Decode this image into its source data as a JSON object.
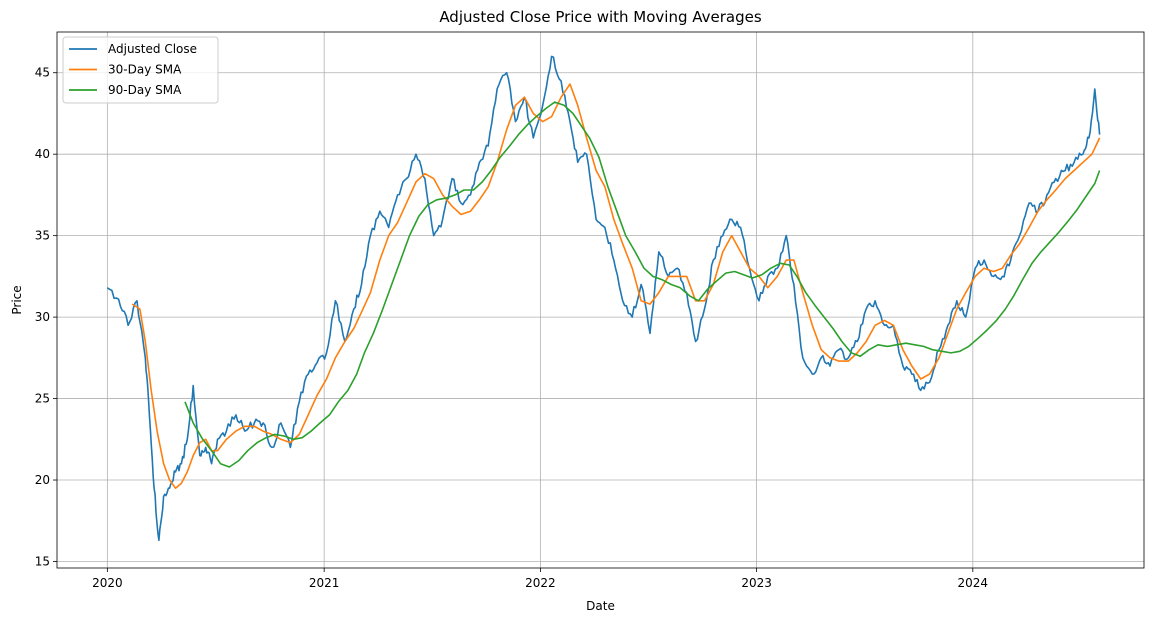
{
  "chart_data": {
    "type": "line",
    "title": "Adjusted Close Price with Moving Averages",
    "xlabel": "Date",
    "ylabel": "Price",
    "xlim": [
      "2019-10-08",
      "2024-10-16"
    ],
    "ylim": [
      14.6,
      47.5
    ],
    "x_ticks": [
      "2020",
      "2021",
      "2022",
      "2023",
      "2024"
    ],
    "y_ticks": [
      "15",
      "20",
      "25",
      "30",
      "35",
      "40",
      "45"
    ],
    "grid": true,
    "legend_position": "top-left",
    "series": [
      {
        "name": "Adjusted Close",
        "color": "#1f77b4",
        "x": [
          "2020-01-01",
          "2020-01-20",
          "2020-02-05",
          "2020-02-20",
          "2020-03-05",
          "2020-03-12",
          "2020-03-20",
          "2020-03-28",
          "2020-04-05",
          "2020-04-15",
          "2020-04-25",
          "2020-05-05",
          "2020-05-15",
          "2020-05-25",
          "2020-06-05",
          "2020-06-15",
          "2020-06-25",
          "2020-07-05",
          "2020-07-20",
          "2020-08-05",
          "2020-08-20",
          "2020-09-05",
          "2020-09-20",
          "2020-10-05",
          "2020-10-20",
          "2020-11-05",
          "2020-11-20",
          "2020-12-05",
          "2020-12-20",
          "2021-01-05",
          "2021-01-20",
          "2021-02-05",
          "2021-02-20",
          "2021-03-05",
          "2021-03-20",
          "2021-04-05",
          "2021-04-20",
          "2021-05-05",
          "2021-05-20",
          "2021-06-05",
          "2021-06-20",
          "2021-07-05",
          "2021-07-20",
          "2021-08-05",
          "2021-08-20",
          "2021-09-05",
          "2021-09-20",
          "2021-10-05",
          "2021-10-20",
          "2021-11-05",
          "2021-11-20",
          "2021-12-05",
          "2021-12-20",
          "2022-01-05",
          "2022-01-20",
          "2022-02-05",
          "2022-02-20",
          "2022-03-05",
          "2022-03-20",
          "2022-04-05",
          "2022-04-20",
          "2022-05-05",
          "2022-05-20",
          "2022-06-05",
          "2022-06-20",
          "2022-07-05",
          "2022-07-20",
          "2022-08-05",
          "2022-08-20",
          "2022-09-05",
          "2022-09-20",
          "2022-10-05",
          "2022-10-20",
          "2022-11-05",
          "2022-11-20",
          "2022-12-05",
          "2022-12-20",
          "2023-01-05",
          "2023-01-20",
          "2023-02-05",
          "2023-02-20",
          "2023-03-05",
          "2023-03-20",
          "2023-04-05",
          "2023-04-20",
          "2023-05-05",
          "2023-05-20",
          "2023-06-05",
          "2023-06-20",
          "2023-07-05",
          "2023-07-20",
          "2023-08-05",
          "2023-08-20",
          "2023-09-05",
          "2023-09-20",
          "2023-10-05",
          "2023-10-20",
          "2023-11-05",
          "2023-11-20",
          "2023-12-05",
          "2023-12-20",
          "2024-01-05",
          "2024-01-20",
          "2024-02-05",
          "2024-02-20",
          "2024-03-05",
          "2024-03-20",
          "2024-04-05",
          "2024-04-20",
          "2024-05-05",
          "2024-05-20",
          "2024-06-05",
          "2024-06-20",
          "2024-07-05",
          "2024-07-15",
          "2024-07-25",
          "2024-08-02"
        ],
        "values": [
          31.8,
          31.1,
          29.5,
          31.0,
          27.5,
          24.0,
          19.5,
          16.3,
          19.0,
          19.5,
          20.5,
          21.0,
          22.5,
          25.8,
          21.5,
          22.0,
          21.0,
          22.5,
          23.0,
          24.0,
          23.0,
          23.5,
          23.5,
          22.0,
          23.5,
          22.0,
          24.8,
          26.5,
          27.2,
          27.8,
          31.0,
          28.5,
          30.5,
          32.0,
          35.0,
          36.5,
          35.5,
          37.5,
          38.5,
          40.0,
          38.5,
          35.0,
          36.0,
          38.5,
          37.0,
          37.5,
          39.5,
          40.5,
          44.0,
          45.0,
          42.0,
          43.5,
          41.0,
          43.0,
          46.0,
          44.5,
          42.0,
          39.5,
          40.0,
          36.0,
          35.5,
          33.5,
          31.0,
          30.0,
          32.0,
          29.0,
          34.0,
          32.5,
          33.0,
          31.5,
          28.5,
          30.5,
          33.5,
          35.0,
          36.0,
          35.5,
          33.0,
          31.0,
          32.5,
          33.0,
          35.0,
          32.0,
          27.5,
          26.5,
          27.5,
          27.0,
          28.0,
          27.5,
          28.5,
          30.5,
          31.0,
          29.5,
          29.5,
          27.0,
          26.5,
          25.5,
          26.0,
          28.0,
          29.5,
          31.0,
          30.0,
          33.0,
          33.5,
          32.5,
          32.5,
          33.5,
          35.0,
          37.0,
          36.5,
          37.5,
          38.5,
          39.0,
          39.5,
          40.0,
          41.0,
          44.0,
          41.2
        ]
      },
      {
        "name": "30-Day SMA",
        "color": "#ff7f0e",
        "x": [
          "2020-02-12",
          "2020-02-25",
          "2020-03-05",
          "2020-03-15",
          "2020-03-25",
          "2020-04-05",
          "2020-04-15",
          "2020-04-25",
          "2020-05-05",
          "2020-05-15",
          "2020-05-25",
          "2020-06-05",
          "2020-06-15",
          "2020-06-25",
          "2020-07-05",
          "2020-07-20",
          "2020-08-05",
          "2020-08-20",
          "2020-09-05",
          "2020-09-20",
          "2020-10-05",
          "2020-10-20",
          "2020-11-05",
          "2020-11-20",
          "2020-12-05",
          "2020-12-20",
          "2021-01-05",
          "2021-01-20",
          "2021-02-05",
          "2021-02-20",
          "2021-03-05",
          "2021-03-20",
          "2021-04-05",
          "2021-04-20",
          "2021-05-05",
          "2021-05-20",
          "2021-06-05",
          "2021-06-20",
          "2021-07-05",
          "2021-07-20",
          "2021-08-05",
          "2021-08-20",
          "2021-09-05",
          "2021-09-20",
          "2021-10-05",
          "2021-10-20",
          "2021-11-05",
          "2021-11-20",
          "2021-12-05",
          "2021-12-20",
          "2022-01-05",
          "2022-01-20",
          "2022-02-05",
          "2022-02-20",
          "2022-03-05",
          "2022-03-20",
          "2022-04-05",
          "2022-04-20",
          "2022-05-05",
          "2022-05-20",
          "2022-06-05",
          "2022-06-20",
          "2022-07-05",
          "2022-07-20",
          "2022-08-05",
          "2022-08-20",
          "2022-09-05",
          "2022-09-20",
          "2022-10-05",
          "2022-10-20",
          "2022-11-05",
          "2022-11-20",
          "2022-12-05",
          "2022-12-20",
          "2023-01-05",
          "2023-01-20",
          "2023-02-05",
          "2023-02-20",
          "2023-03-05",
          "2023-03-20",
          "2023-04-05",
          "2023-04-20",
          "2023-05-05",
          "2023-05-20",
          "2023-06-05",
          "2023-06-20",
          "2023-07-05",
          "2023-07-20",
          "2023-08-05",
          "2023-08-20",
          "2023-09-05",
          "2023-09-20",
          "2023-10-05",
          "2023-10-20",
          "2023-11-05",
          "2023-11-20",
          "2023-12-05",
          "2023-12-20",
          "2024-01-05",
          "2024-01-20",
          "2024-02-05",
          "2024-02-20",
          "2024-03-05",
          "2024-03-20",
          "2024-04-05",
          "2024-04-20",
          "2024-05-05",
          "2024-05-20",
          "2024-06-05",
          "2024-06-20",
          "2024-07-05",
          "2024-07-20",
          "2024-08-02"
        ],
        "values": [
          30.8,
          30.5,
          28.5,
          25.5,
          23.0,
          21.0,
          20.0,
          19.5,
          19.8,
          20.5,
          21.5,
          22.3,
          22.5,
          21.8,
          21.8,
          22.5,
          23.0,
          23.3,
          23.3,
          23.0,
          22.8,
          22.5,
          22.3,
          22.8,
          24.0,
          25.2,
          26.2,
          27.5,
          28.5,
          29.3,
          30.3,
          31.5,
          33.5,
          35.0,
          35.8,
          37.0,
          38.3,
          38.8,
          38.5,
          37.5,
          36.8,
          36.3,
          36.5,
          37.2,
          38.0,
          39.5,
          41.5,
          43.0,
          43.5,
          42.5,
          42.0,
          42.3,
          43.5,
          44.3,
          43.0,
          41.0,
          39.0,
          38.0,
          36.0,
          34.5,
          33.0,
          31.0,
          30.8,
          31.5,
          32.5,
          32.5,
          32.5,
          31.0,
          31.0,
          32.0,
          34.0,
          35.0,
          34.0,
          33.0,
          32.5,
          31.8,
          32.5,
          33.5,
          33.5,
          31.5,
          29.5,
          28.0,
          27.5,
          27.3,
          27.3,
          27.8,
          28.5,
          29.5,
          29.8,
          29.5,
          28.0,
          27.0,
          26.2,
          26.5,
          27.5,
          29.0,
          30.5,
          31.5,
          32.5,
          33.0,
          32.8,
          33.0,
          33.8,
          34.5,
          35.5,
          36.5,
          37.2,
          37.8,
          38.5,
          39.0,
          39.5,
          40.0,
          41.0
        ]
      },
      {
        "name": "90-Day SMA",
        "color": "#2ca02c",
        "x": [
          "2020-05-11",
          "2020-05-25",
          "2020-06-10",
          "2020-06-25",
          "2020-07-10",
          "2020-07-25",
          "2020-08-10",
          "2020-08-25",
          "2020-09-10",
          "2020-09-25",
          "2020-10-10",
          "2020-10-25",
          "2020-11-10",
          "2020-11-25",
          "2020-12-10",
          "2020-12-25",
          "2021-01-10",
          "2021-01-25",
          "2021-02-10",
          "2021-02-25",
          "2021-03-10",
          "2021-03-25",
          "2021-04-10",
          "2021-04-25",
          "2021-05-10",
          "2021-05-25",
          "2021-06-10",
          "2021-06-25",
          "2021-07-10",
          "2021-07-25",
          "2021-08-10",
          "2021-08-25",
          "2021-09-10",
          "2021-09-25",
          "2021-10-10",
          "2021-10-25",
          "2021-11-10",
          "2021-11-25",
          "2021-12-10",
          "2021-12-25",
          "2022-01-10",
          "2022-01-25",
          "2022-02-10",
          "2022-02-25",
          "2022-03-10",
          "2022-03-25",
          "2022-04-10",
          "2022-04-25",
          "2022-05-10",
          "2022-05-25",
          "2022-06-10",
          "2022-06-25",
          "2022-07-10",
          "2022-07-25",
          "2022-08-10",
          "2022-08-25",
          "2022-09-10",
          "2022-09-25",
          "2022-10-10",
          "2022-10-25",
          "2022-11-10",
          "2022-11-25",
          "2022-12-10",
          "2022-12-25",
          "2023-01-10",
          "2023-01-25",
          "2023-02-10",
          "2023-02-25",
          "2023-03-10",
          "2023-03-25",
          "2023-04-10",
          "2023-04-25",
          "2023-05-10",
          "2023-05-25",
          "2023-06-10",
          "2023-06-25",
          "2023-07-10",
          "2023-07-25",
          "2023-08-10",
          "2023-08-25",
          "2023-09-10",
          "2023-09-25",
          "2023-10-10",
          "2023-10-25",
          "2023-11-10",
          "2023-11-25",
          "2023-12-10",
          "2023-12-25",
          "2024-01-10",
          "2024-01-25",
          "2024-02-10",
          "2024-02-25",
          "2024-03-10",
          "2024-03-25",
          "2024-04-10",
          "2024-04-25",
          "2024-05-10",
          "2024-05-25",
          "2024-06-10",
          "2024-06-25",
          "2024-07-10",
          "2024-07-25",
          "2024-08-02"
        ],
        "values": [
          24.8,
          23.5,
          22.5,
          21.8,
          21.0,
          20.8,
          21.2,
          21.8,
          22.3,
          22.6,
          22.8,
          22.7,
          22.5,
          22.6,
          23.0,
          23.5,
          24.0,
          24.8,
          25.5,
          26.5,
          27.8,
          29.0,
          30.5,
          32.0,
          33.5,
          35.0,
          36.2,
          36.9,
          37.2,
          37.3,
          37.5,
          37.8,
          37.8,
          38.3,
          39.0,
          39.8,
          40.5,
          41.2,
          41.8,
          42.3,
          42.8,
          43.2,
          43.0,
          42.5,
          41.8,
          41.0,
          39.8,
          38.0,
          36.5,
          35.0,
          34.0,
          33.0,
          32.5,
          32.3,
          32.0,
          31.8,
          31.3,
          31.0,
          31.7,
          32.2,
          32.7,
          32.8,
          32.6,
          32.4,
          32.6,
          33.0,
          33.3,
          33.2,
          32.5,
          31.5,
          30.7,
          30.0,
          29.3,
          28.5,
          27.8,
          27.6,
          28.0,
          28.3,
          28.2,
          28.3,
          28.4,
          28.3,
          28.2,
          28.0,
          27.9,
          27.8,
          27.9,
          28.2,
          28.7,
          29.2,
          29.8,
          30.5,
          31.3,
          32.3,
          33.3,
          34.0,
          34.6,
          35.2,
          35.9,
          36.6,
          37.4,
          38.2,
          39.0
        ]
      }
    ]
  }
}
